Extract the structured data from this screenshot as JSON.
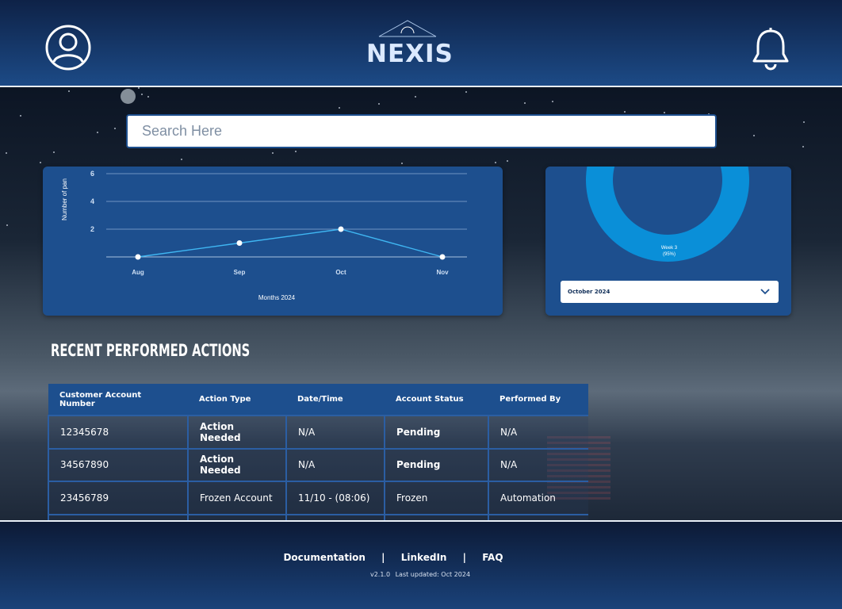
{
  "header": {
    "logo_text": "NEXIS",
    "icons": {
      "profile": "user-circle-icon",
      "notifications": "bell-icon"
    }
  },
  "search": {
    "placeholder": "Search Here"
  },
  "line_chart": {
    "ylabel": "Number of pan",
    "xlabel": "Months 2024",
    "y_ticks": [
      "2",
      "4",
      "6"
    ],
    "categories": [
      "Aug",
      "Sep",
      "Oct",
      "Nov"
    ]
  },
  "donut_chart": {
    "slice_label": "Week 3",
    "slice_percent": "(95%)",
    "selected_month": "October 2024"
  },
  "chart_data": [
    {
      "type": "line",
      "categories": [
        "Aug",
        "Sep",
        "Oct",
        "Nov"
      ],
      "series": [
        {
          "values": [
            0,
            1,
            2,
            0
          ]
        }
      ],
      "xlabel": "Months 2024",
      "ylabel": "Number of pan",
      "ylim": [
        0,
        6
      ],
      "grid": true,
      "color": "#3fb6f2"
    },
    {
      "type": "pie",
      "slices": [
        {
          "label": "Week 3",
          "value": 95
        },
        {
          "label": "",
          "value": 5
        }
      ],
      "colors": [
        "#0a8fd8",
        "#0b4a8e"
      ]
    }
  ],
  "recent": {
    "title": "Recent Performed Actions",
    "columns": [
      "Customer Account Number",
      "Action Type",
      "Date/Time",
      "Account Status",
      "Performed By"
    ],
    "rows": [
      [
        "12345678",
        "Action Needed",
        "N/A",
        "Pending",
        "N/A"
      ],
      [
        "34567890",
        "Action Needed",
        "N/A",
        "Pending",
        "N/A"
      ],
      [
        "23456789",
        "Frozen Account",
        "11/10 - (08:06)",
        "Frozen",
        "Automation"
      ]
    ]
  },
  "footer": {
    "links": [
      "Documentation",
      "LinkedIn",
      "FAQ"
    ],
    "separator": "|",
    "version": "v2.1.0",
    "last_updated": "Last updated: Oct 2024"
  },
  "colors": {
    "brand": "#1d4f8e",
    "header_top": "#0e2247",
    "line": "#3fb6f2",
    "donut": "#0a8fd8"
  }
}
